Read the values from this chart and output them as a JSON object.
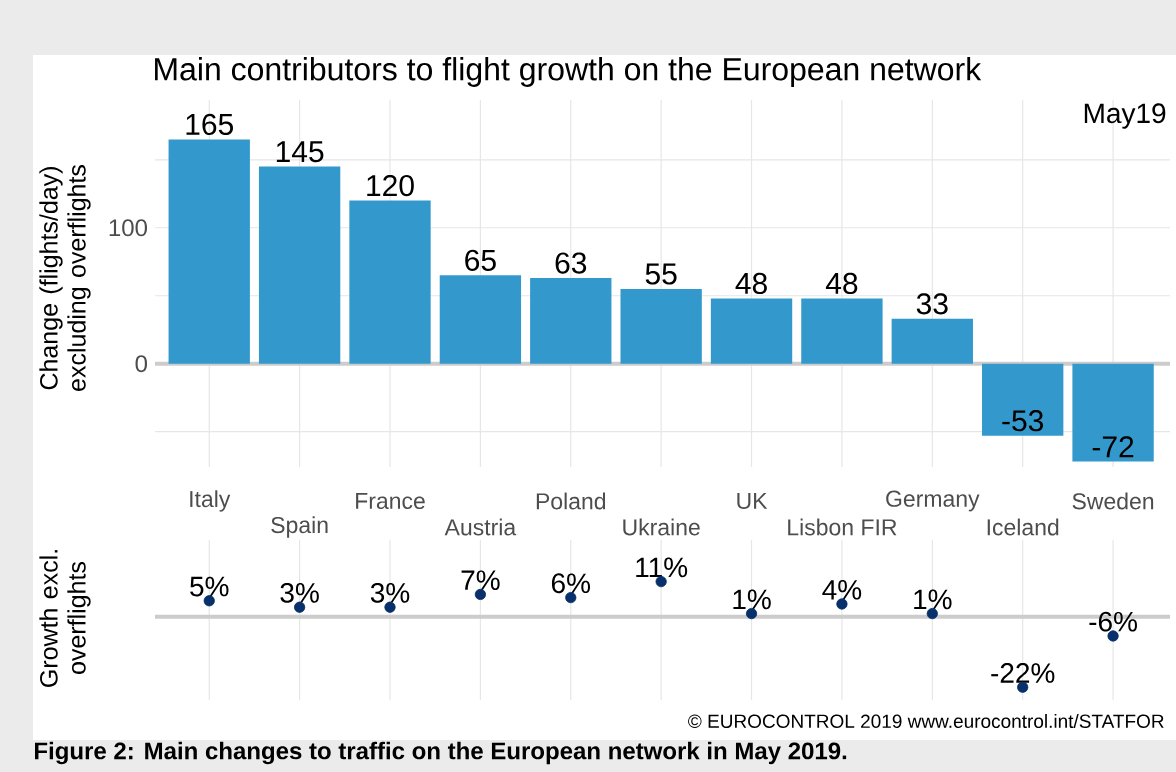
{
  "chart_data": [
    {
      "type": "bar",
      "title": "Main contributors to flight growth on the European network",
      "ylabel": "Change (flights/day) excluding overflights",
      "categories": [
        "Italy",
        "Spain",
        "France",
        "Austria",
        "Poland",
        "Ukraine",
        "UK",
        "Lisbon FIR",
        "Germany",
        "Iceland",
        "Sweden"
      ],
      "values": [
        165,
        145,
        120,
        65,
        63,
        55,
        48,
        48,
        33,
        -53,
        -72
      ],
      "color": "#3399cc",
      "ylim": [
        -76,
        194
      ],
      "yticks": [
        {
          "value": -50,
          "label": null
        },
        0,
        {
          "value": 50,
          "label": null
        },
        100,
        {
          "value": 150,
          "label": null
        }
      ],
      "grid": true,
      "data_labels": true,
      "ref_lines": [
        {
          "axis": "y",
          "value": 0
        }
      ],
      "annotations": [
        "May19"
      ]
    },
    {
      "type": "scatter",
      "ylabel": "Growth excl. overflights",
      "categories": [
        null,
        null,
        null,
        null,
        null,
        null,
        null,
        null,
        null,
        null,
        null
      ],
      "values": [
        5,
        3,
        3,
        7,
        6,
        11,
        1,
        4,
        1,
        -22,
        -6
      ],
      "value_labels": [
        "5%",
        "3%",
        "3%",
        "7%",
        "6%",
        "11%",
        "1%",
        "4%",
        "1%",
        "-22%",
        "-6%"
      ],
      "color": "#08306b",
      "marker": "circle",
      "ylim": [
        -26,
        24
      ],
      "grid": "x",
      "ref_lines": [
        {
          "axis": "y",
          "value": 0
        }
      ],
      "annotations": [
        "© EUROCONTROL 2019 www.eurocontrol.int/STATFOR",
        "Figure 2: Main changes to traffic on the European network in May 2019."
      ]
    }
  ]
}
